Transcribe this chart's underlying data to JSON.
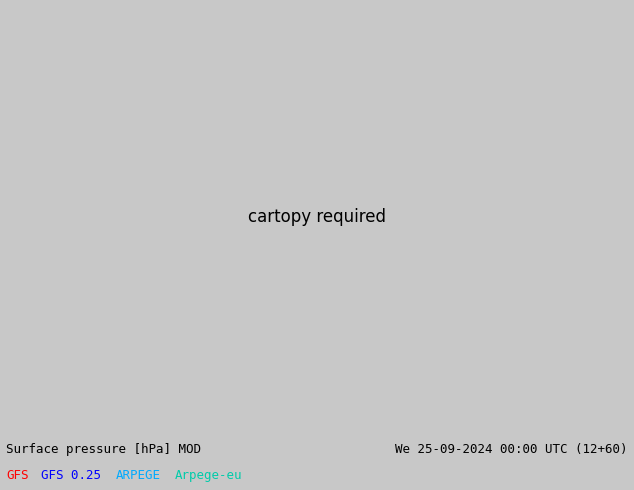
{
  "title_left": "Surface pressure [hPa] MOD",
  "title_right": "We 25-09-2024 00:00 UTC (12+60)",
  "legend_items": [
    {
      "label": "GFS",
      "color": "#ff0000"
    },
    {
      "label": "GFS 0.25",
      "color": "#0000ff"
    },
    {
      "label": "ARPEGE",
      "color": "#00aaff"
    },
    {
      "label": "Arpege-eu",
      "color": "#00ccaa"
    }
  ],
  "bg_color": "#c8c8c8",
  "land_color": "#a0d890",
  "ocean_color": "#d8f0d8",
  "mountain_color": "#b0c8a0",
  "footer_bg": "#c8c8c8",
  "title_fontsize": 9,
  "legend_fontsize": 9,
  "fig_width": 6.34,
  "fig_height": 4.9,
  "dpi": 100,
  "map_extent": [
    -130,
    -60,
    20,
    60
  ]
}
